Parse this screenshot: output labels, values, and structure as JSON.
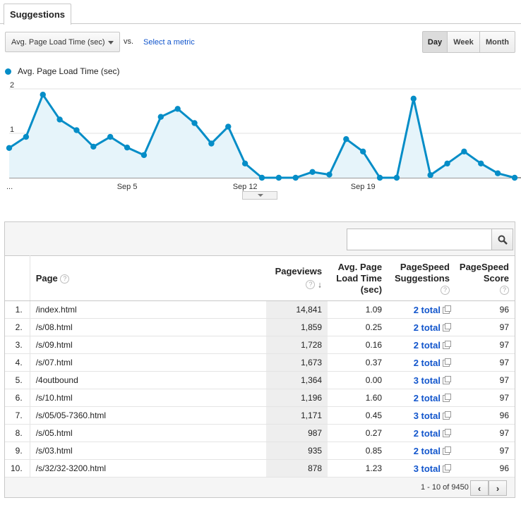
{
  "tabs": {
    "active_label": "Suggestions"
  },
  "controls": {
    "metric": "Avg. Page Load Time (sec)",
    "vs": "vs.",
    "select_metric": "Select a metric",
    "granularity": [
      "Day",
      "Week",
      "Month"
    ],
    "selected_granularity": "Day"
  },
  "colors": {
    "series": "#058dc7",
    "fill": "#e6f4fa",
    "link": "#1155cc"
  },
  "chart_data": {
    "type": "area",
    "legend": "Avg. Page Load Time (sec)",
    "y_ticks": [
      "2",
      "1"
    ],
    "ylim": [
      0,
      2
    ],
    "x_ticks": [
      "...",
      "Sep 5",
      "Sep 12",
      "Sep 19"
    ],
    "x_tick_index": [
      0,
      7,
      14,
      21
    ],
    "values": [
      0.67,
      0.92,
      1.87,
      1.31,
      1.07,
      0.7,
      0.92,
      0.68,
      0.51,
      1.37,
      1.55,
      1.23,
      0.77,
      1.15,
      0.32,
      0.0,
      0.0,
      0.0,
      0.13,
      0.07,
      0.87,
      0.59,
      0.0,
      0.0,
      1.78,
      0.06,
      0.32,
      0.59,
      0.32,
      0.1,
      0.0
    ]
  },
  "search": {
    "placeholder": ""
  },
  "table": {
    "headers": {
      "page": "Page",
      "pageviews": "Pageviews",
      "load_time": "Avg. Page Load Time (sec)",
      "suggestions": "PageSpeed Suggestions",
      "score": "PageSpeed Score"
    },
    "rows": [
      {
        "n": "1.",
        "page": "/index.html",
        "pv": "14,841",
        "lt": "1.09",
        "ps": "2 total",
        "sc": "96"
      },
      {
        "n": "2.",
        "page": "/s/08.html",
        "pv": "1,859",
        "lt": "0.25",
        "ps": "2 total",
        "sc": "97"
      },
      {
        "n": "3.",
        "page": "/s/09.html",
        "pv": "1,728",
        "lt": "0.16",
        "ps": "2 total",
        "sc": "97"
      },
      {
        "n": "4.",
        "page": "/s/07.html",
        "pv": "1,673",
        "lt": "0.37",
        "ps": "2 total",
        "sc": "97"
      },
      {
        "n": "5.",
        "page": "/4outbound",
        "pv": "1,364",
        "lt": "0.00",
        "ps": "3 total",
        "sc": "97"
      },
      {
        "n": "6.",
        "page": "/s/10.html",
        "pv": "1,196",
        "lt": "1.60",
        "ps": "2 total",
        "sc": "97"
      },
      {
        "n": "7.",
        "page": "/s/05/05-7360.html",
        "pv": "1,171",
        "lt": "0.45",
        "ps": "3 total",
        "sc": "96"
      },
      {
        "n": "8.",
        "page": "/s/05.html",
        "pv": "987",
        "lt": "0.27",
        "ps": "2 total",
        "sc": "97"
      },
      {
        "n": "9.",
        "page": "/s/03.html",
        "pv": "935",
        "lt": "0.85",
        "ps": "2 total",
        "sc": "97"
      },
      {
        "n": "10.",
        "page": "/s/32/32-3200.html",
        "pv": "878",
        "lt": "1.23",
        "ps": "3 total",
        "sc": "96"
      }
    ]
  },
  "pagination": {
    "range": "1 - 10 of 9450",
    "prev": "‹",
    "next": "›"
  },
  "icons": {
    "help": "question-icon",
    "sort": "sort-down-icon",
    "search": "search-icon",
    "external": "external-link-icon"
  }
}
